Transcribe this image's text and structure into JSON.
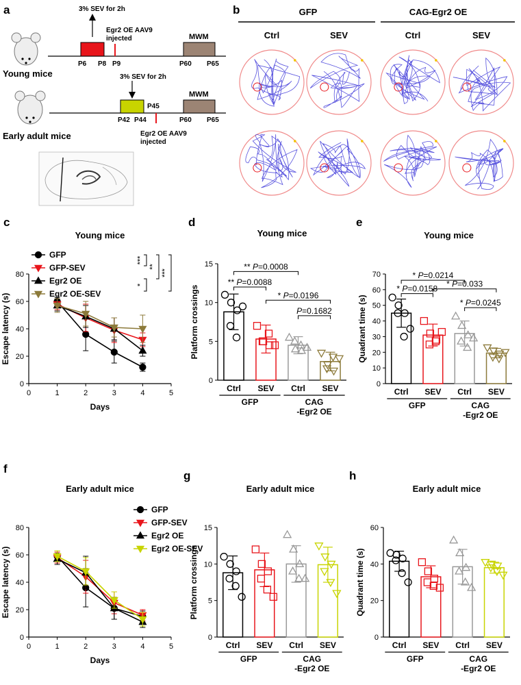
{
  "panel_labels": [
    "a",
    "b",
    "c",
    "d",
    "e",
    "f",
    "g",
    "h"
  ],
  "colors": {
    "black": "#000000",
    "red": "#e8151b",
    "gray": "#999999",
    "olive": "#8c7a3a",
    "yellow": "#c8d400",
    "pool_border": "#f08a8a",
    "track": "#3a34d8",
    "mwm_box": "#9c8474"
  },
  "panel_a": {
    "young": {
      "label": "Young mice",
      "sev_text": "3% SEV for 2h",
      "aav_text_1": "Egr2 OE AAV9",
      "aav_text_2": "injected",
      "mwm": "MWM",
      "ticks": [
        "P6",
        "P8",
        "P9",
        "P60",
        "P65"
      ]
    },
    "adult": {
      "label": "Early adult mice",
      "sev_text": "3% SEV for 2h",
      "aav_text_1": "Egr2 OE AAV9",
      "aav_text_2": "injected",
      "mwm": "MWM",
      "ticks": [
        "P42",
        "P44",
        "P45",
        "P60",
        "P65"
      ]
    }
  },
  "panel_b": {
    "groups": [
      "GFP",
      "CAG-Egr2 OE"
    ],
    "columns": [
      "Ctrl",
      "SEV",
      "Ctrl",
      "SEV"
    ]
  },
  "chart_data": [
    {
      "id": "c",
      "type": "line",
      "title": "Young mice",
      "xlabel": "Days",
      "ylabel": "Escape latency (s)",
      "xlim": [
        0,
        5
      ],
      "ylim": [
        0,
        80
      ],
      "x": [
        1,
        2,
        3,
        4
      ],
      "series": [
        {
          "name": "GFP",
          "color": "#000000",
          "marker": "circle",
          "values": [
            60,
            36,
            23,
            12
          ],
          "err": [
            3,
            12,
            8,
            3
          ]
        },
        {
          "name": "GFP-SEV",
          "color": "#e8151b",
          "marker": "triangle-down",
          "values": [
            58,
            48,
            39,
            32
          ],
          "err": [
            4,
            10,
            9,
            5
          ]
        },
        {
          "name": "Egr2 OE",
          "color": "#000000",
          "marker": "triangle-up",
          "values": [
            57,
            49,
            40,
            24
          ],
          "err": [
            4,
            8,
            8,
            4
          ]
        },
        {
          "name": "Egr2 OE-SEV",
          "color": "#8c7a3a",
          "marker": "triangle-down",
          "values": [
            57,
            51,
            41,
            40
          ],
          "err": [
            5,
            9,
            7,
            10
          ]
        }
      ],
      "significance": [
        "***",
        "**",
        "***",
        "*"
      ]
    },
    {
      "id": "d",
      "type": "bar",
      "title": "Young mice",
      "ylabel": "Platform crossings",
      "ylim": [
        0,
        15
      ],
      "categories": [
        "Ctrl",
        "SEV",
        "Ctrl",
        "SEV"
      ],
      "groups": [
        "GFP",
        "CAG\n-Egr2 OE"
      ],
      "values": [
        8.8,
        5.3,
        4.5,
        2.4
      ],
      "err": [
        2.3,
        1.8,
        1.1,
        1.2
      ],
      "colors": [
        "#000000",
        "#e8151b",
        "#999999",
        "#8c7a3a"
      ],
      "markers": [
        "circle",
        "square",
        "triangle-up",
        "triangle-down"
      ],
      "points": [
        [
          11,
          10,
          9,
          7,
          5.5,
          9.5
        ],
        [
          7,
          5,
          4.5,
          5,
          6,
          4.5
        ],
        [
          5.5,
          4,
          3.8,
          5,
          4.5,
          4.2
        ],
        [
          3.5,
          2,
          1.2,
          1.5,
          3,
          2.8
        ]
      ],
      "comparisons": [
        {
          "text": "** P=0.0008",
          "from": 0,
          "to": 2,
          "y": 14
        },
        {
          "text": "** P=0.0088",
          "from": 0,
          "to": 1,
          "y": 12
        },
        {
          "text": "* P=0.0196",
          "from": 1,
          "to": 3,
          "y": 10.3
        },
        {
          "text": "P=0.1682",
          "from": 2,
          "to": 3,
          "y": 8.3
        }
      ]
    },
    {
      "id": "e",
      "type": "bar",
      "title": "Young mice",
      "ylabel": "Quadrant time (s)",
      "ylim": [
        0,
        70
      ],
      "categories": [
        "Ctrl",
        "SEV",
        "Ctrl",
        "SEV"
      ],
      "groups": [
        "GFP",
        "CAG\n-Egr2 OE"
      ],
      "values": [
        45,
        31,
        32,
        19.5
      ],
      "err": [
        9,
        7,
        8,
        3
      ],
      "colors": [
        "#000000",
        "#e8151b",
        "#999999",
        "#8c7a3a"
      ],
      "markers": [
        "circle",
        "square",
        "triangle-up",
        "triangle-down"
      ],
      "points": [
        [
          55,
          50,
          45,
          45,
          30,
          35
        ],
        [
          40,
          32,
          28,
          25,
          27,
          33
        ],
        [
          43,
          37,
          31,
          27,
          23,
          29
        ],
        [
          23,
          21,
          19,
          17,
          16,
          20
        ]
      ],
      "comparisons": [
        {
          "text": "* P=0.0214",
          "from": 0,
          "to": 2,
          "y": 66
        },
        {
          "text": "* P=0.0158",
          "from": 0,
          "to": 1,
          "y": 57.5
        },
        {
          "text": "* P=0.033",
          "from": 1,
          "to": 3,
          "y": 60.5
        },
        {
          "text": "* P=0.0245",
          "from": 2,
          "to": 3,
          "y": 48.5
        }
      ]
    },
    {
      "id": "f",
      "type": "line",
      "title": "Early adult mice",
      "xlabel": "Days",
      "ylabel": "Escape latency (s)",
      "xlim": [
        0,
        5
      ],
      "ylim": [
        0,
        80
      ],
      "x": [
        1,
        2,
        3,
        4
      ],
      "series": [
        {
          "name": "GFP",
          "color": "#000000",
          "marker": "circle",
          "values": [
            59,
            36,
            21,
            15
          ],
          "err": [
            4,
            14,
            8,
            4
          ]
        },
        {
          "name": "GFP-SEV",
          "color": "#e8151b",
          "marker": "triangle-down",
          "values": [
            58,
            44,
            25,
            16
          ],
          "err": [
            4,
            12,
            8,
            4
          ]
        },
        {
          "name": "Egr2 OE",
          "color": "#000000",
          "marker": "triangle-up",
          "values": [
            57,
            47,
            21,
            11
          ],
          "err": [
            4,
            12,
            8,
            4
          ]
        },
        {
          "name": "Egr2 OE-SEV",
          "color": "#c8d400",
          "marker": "triangle-down",
          "values": [
            59,
            48,
            27,
            13
          ],
          "err": [
            4,
            10,
            6,
            5
          ]
        }
      ]
    },
    {
      "id": "g",
      "type": "bar",
      "title": "Early adult mice",
      "ylabel": "Platform crossings",
      "ylim": [
        0,
        15
      ],
      "categories": [
        "Ctrl",
        "SEV",
        "Ctrl",
        "SEV"
      ],
      "groups": [
        "GFP",
        "CAG\n-Egr2 OE"
      ],
      "values": [
        8.8,
        9.2,
        10,
        9.9
      ],
      "err": [
        2.3,
        2.3,
        2.5,
        2.4
      ],
      "colors": [
        "#000000",
        "#e8151b",
        "#999999",
        "#c8d400"
      ],
      "markers": [
        "circle",
        "square",
        "triangle-up",
        "triangle-down"
      ],
      "points": [
        [
          11,
          10,
          9,
          8,
          7,
          5.5
        ],
        [
          12,
          10,
          9,
          8,
          6.5,
          5.5
        ],
        [
          14,
          12,
          10,
          9,
          8,
          8
        ],
        [
          12.5,
          11,
          10,
          9,
          7.5,
          6
        ]
      ]
    },
    {
      "id": "h",
      "type": "bar",
      "title": "Early adult mice",
      "ylabel": "Quadrant time (s)",
      "ylim": [
        0,
        60
      ],
      "categories": [
        "Ctrl",
        "SEV",
        "Ctrl",
        "SEV"
      ],
      "groups": [
        "GFP",
        "CAG\n-Egr2 OE"
      ],
      "values": [
        41.5,
        33,
        38.5,
        38
      ],
      "err": [
        5.5,
        6,
        9.5,
        3
      ],
      "colors": [
        "#000000",
        "#e8151b",
        "#999999",
        "#c8d400"
      ],
      "markers": [
        "circle",
        "square",
        "triangle-up",
        "triangle-down"
      ],
      "points": [
        [
          46,
          45,
          43,
          42,
          35,
          30
        ],
        [
          41,
          36,
          32,
          30,
          28,
          27
        ],
        [
          53,
          46,
          38,
          36,
          30,
          27
        ],
        [
          41,
          40,
          39,
          38,
          36,
          34
        ]
      ]
    }
  ]
}
